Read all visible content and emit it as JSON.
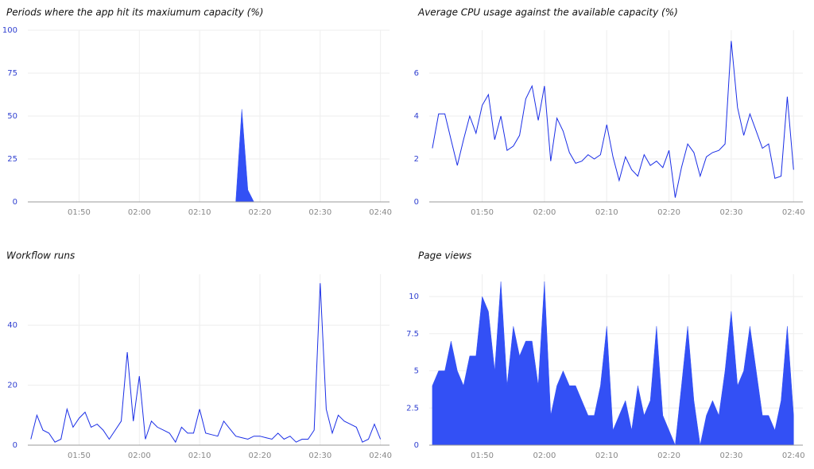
{
  "chart_data": [
    {
      "type": "area",
      "title": "Periods where the app hit its maxiumum capacity (%)",
      "color": "#3350f5",
      "x": [
        102,
        103,
        104,
        105,
        106,
        107,
        108,
        109,
        110,
        111,
        112,
        113,
        114,
        115,
        116,
        117,
        118,
        119,
        120,
        121,
        122,
        123,
        124,
        125,
        126,
        127,
        128,
        129,
        130,
        131,
        132,
        133,
        134,
        135,
        136,
        137,
        138,
        139,
        140,
        141,
        142,
        143,
        144,
        145,
        146,
        147,
        148,
        149,
        150,
        151,
        152,
        153,
        154,
        155,
        156,
        157,
        158,
        159,
        160
      ],
      "values": [
        0,
        0,
        0,
        0,
        0,
        0,
        0,
        0,
        0,
        0,
        0,
        0,
        0,
        0,
        0,
        0,
        0,
        0,
        0,
        0,
        0,
        0,
        0,
        0,
        0,
        0,
        0,
        0,
        0,
        0,
        0,
        0,
        0,
        0,
        0,
        54,
        7,
        0,
        0,
        0,
        0,
        0,
        0,
        0,
        0,
        0,
        0,
        0,
        0,
        0,
        0,
        0,
        0,
        0,
        0,
        0,
        0,
        0,
        0
      ],
      "xlim": [
        101.5,
        161.5
      ],
      "xticks": [
        {
          "value": 110,
          "label": "01:50"
        },
        {
          "value": 120,
          "label": "02:00"
        },
        {
          "value": 130,
          "label": "02:10"
        },
        {
          "value": 140,
          "label": "02:20"
        },
        {
          "value": 150,
          "label": "02:30"
        },
        {
          "value": 160,
          "label": "02:40"
        }
      ],
      "ylim": [
        0,
        100
      ],
      "yticks": [
        0,
        25,
        50,
        75,
        100
      ],
      "grid": true
    },
    {
      "type": "line",
      "title": "Average CPU usage against the available capacity (%)",
      "color": "#1a2ee6",
      "x": [
        102,
        103,
        104,
        105,
        106,
        107,
        108,
        109,
        110,
        111,
        112,
        113,
        114,
        115,
        116,
        117,
        118,
        119,
        120,
        121,
        122,
        123,
        124,
        125,
        126,
        127,
        128,
        129,
        130,
        131,
        132,
        133,
        134,
        135,
        136,
        137,
        138,
        139,
        140,
        141,
        142,
        143,
        144,
        145,
        146,
        147,
        148,
        149,
        150,
        151,
        152,
        153,
        154,
        155,
        156,
        157,
        158,
        159,
        160
      ],
      "values": [
        2.5,
        4.1,
        4.1,
        2.9,
        1.7,
        2.9,
        4.0,
        3.2,
        4.5,
        5.0,
        2.9,
        4.0,
        2.4,
        2.6,
        3.1,
        4.8,
        5.4,
        3.8,
        5.4,
        1.9,
        3.9,
        3.3,
        2.3,
        1.8,
        1.9,
        2.2,
        2.0,
        2.2,
        3.6,
        2.1,
        1.0,
        2.1,
        1.5,
        1.2,
        2.2,
        1.7,
        1.9,
        1.6,
        2.4,
        0.2,
        1.6,
        2.7,
        2.3,
        1.2,
        2.1,
        2.3,
        2.4,
        2.7,
        7.5,
        4.4,
        3.1,
        4.1,
        3.3,
        2.5,
        2.7,
        1.1,
        1.2,
        4.9,
        1.5
      ],
      "xlim": [
        101.5,
        161.5
      ],
      "xticks": [
        {
          "value": 110,
          "label": "01:50"
        },
        {
          "value": 120,
          "label": "02:00"
        },
        {
          "value": 130,
          "label": "02:10"
        },
        {
          "value": 140,
          "label": "02:20"
        },
        {
          "value": 150,
          "label": "02:30"
        },
        {
          "value": 160,
          "label": "02:40"
        }
      ],
      "ylim": [
        0,
        8
      ],
      "yticks": [
        0,
        2,
        4,
        6
      ],
      "grid": true
    },
    {
      "type": "line",
      "title": "Workflow runs",
      "color": "#1a2ee6",
      "x": [
        102,
        103,
        104,
        105,
        106,
        107,
        108,
        109,
        110,
        111,
        112,
        113,
        114,
        115,
        116,
        117,
        118,
        119,
        120,
        121,
        122,
        123,
        124,
        125,
        126,
        127,
        128,
        129,
        130,
        131,
        132,
        133,
        134,
        135,
        136,
        137,
        138,
        139,
        140,
        141,
        142,
        143,
        144,
        145,
        146,
        147,
        148,
        149,
        150,
        151,
        152,
        153,
        154,
        155,
        156,
        157,
        158,
        159,
        160
      ],
      "values": [
        2,
        10,
        5,
        4,
        1,
        2,
        12,
        6,
        9,
        11,
        6,
        7,
        5,
        2,
        5,
        8,
        31,
        8,
        23,
        2,
        8,
        6,
        5,
        4,
        1,
        6,
        4,
        4,
        12,
        4,
        3.5,
        3,
        8,
        5.5,
        3,
        2.5,
        2,
        3,
        3,
        2.5,
        2,
        4,
        2,
        3,
        1,
        2,
        2,
        5,
        54,
        12,
        4,
        10,
        8,
        7,
        6,
        1,
        2,
        7,
        2
      ],
      "xlim": [
        101.5,
        161.5
      ],
      "xticks": [
        {
          "value": 110,
          "label": "01:50"
        },
        {
          "value": 120,
          "label": "02:00"
        },
        {
          "value": 130,
          "label": "02:10"
        },
        {
          "value": 140,
          "label": "02:20"
        },
        {
          "value": 150,
          "label": "02:30"
        },
        {
          "value": 160,
          "label": "02:40"
        }
      ],
      "ylim": [
        0,
        57
      ],
      "yticks": [
        0,
        20,
        40
      ],
      "grid": true
    },
    {
      "type": "area",
      "title": "Page views",
      "color": "#3350f5",
      "x": [
        102,
        103,
        104,
        105,
        106,
        107,
        108,
        109,
        110,
        111,
        112,
        113,
        114,
        115,
        116,
        117,
        118,
        119,
        120,
        121,
        122,
        123,
        124,
        125,
        126,
        127,
        128,
        129,
        130,
        131,
        132,
        133,
        134,
        135,
        136,
        137,
        138,
        139,
        140,
        141,
        142,
        143,
        144,
        145,
        146,
        147,
        148,
        149,
        150,
        151,
        152,
        153,
        154,
        155,
        156,
        157,
        158,
        159,
        160
      ],
      "values": [
        4,
        5,
        5,
        7,
        5,
        4,
        6,
        6,
        10,
        9,
        5,
        11,
        4,
        8,
        6,
        7,
        7,
        4,
        11,
        2,
        4,
        5,
        4,
        4,
        3,
        2,
        2,
        4,
        8,
        1,
        2,
        3,
        1,
        4,
        2,
        3,
        8,
        2,
        1,
        0,
        4,
        8,
        3,
        0,
        2,
        3,
        2,
        5,
        9,
        4,
        5,
        8,
        5,
        2,
        2,
        1,
        3,
        8,
        2
      ],
      "xlim": [
        101.5,
        161.5
      ],
      "xticks": [
        {
          "value": 110,
          "label": "01:50"
        },
        {
          "value": 120,
          "label": "02:00"
        },
        {
          "value": 130,
          "label": "02:10"
        },
        {
          "value": 140,
          "label": "02:20"
        },
        {
          "value": 150,
          "label": "02:30"
        },
        {
          "value": 160,
          "label": "02:40"
        }
      ],
      "ylim": [
        0,
        11.5
      ],
      "yticks": [
        0,
        2.5,
        5,
        7.5,
        10
      ],
      "grid": true
    }
  ]
}
